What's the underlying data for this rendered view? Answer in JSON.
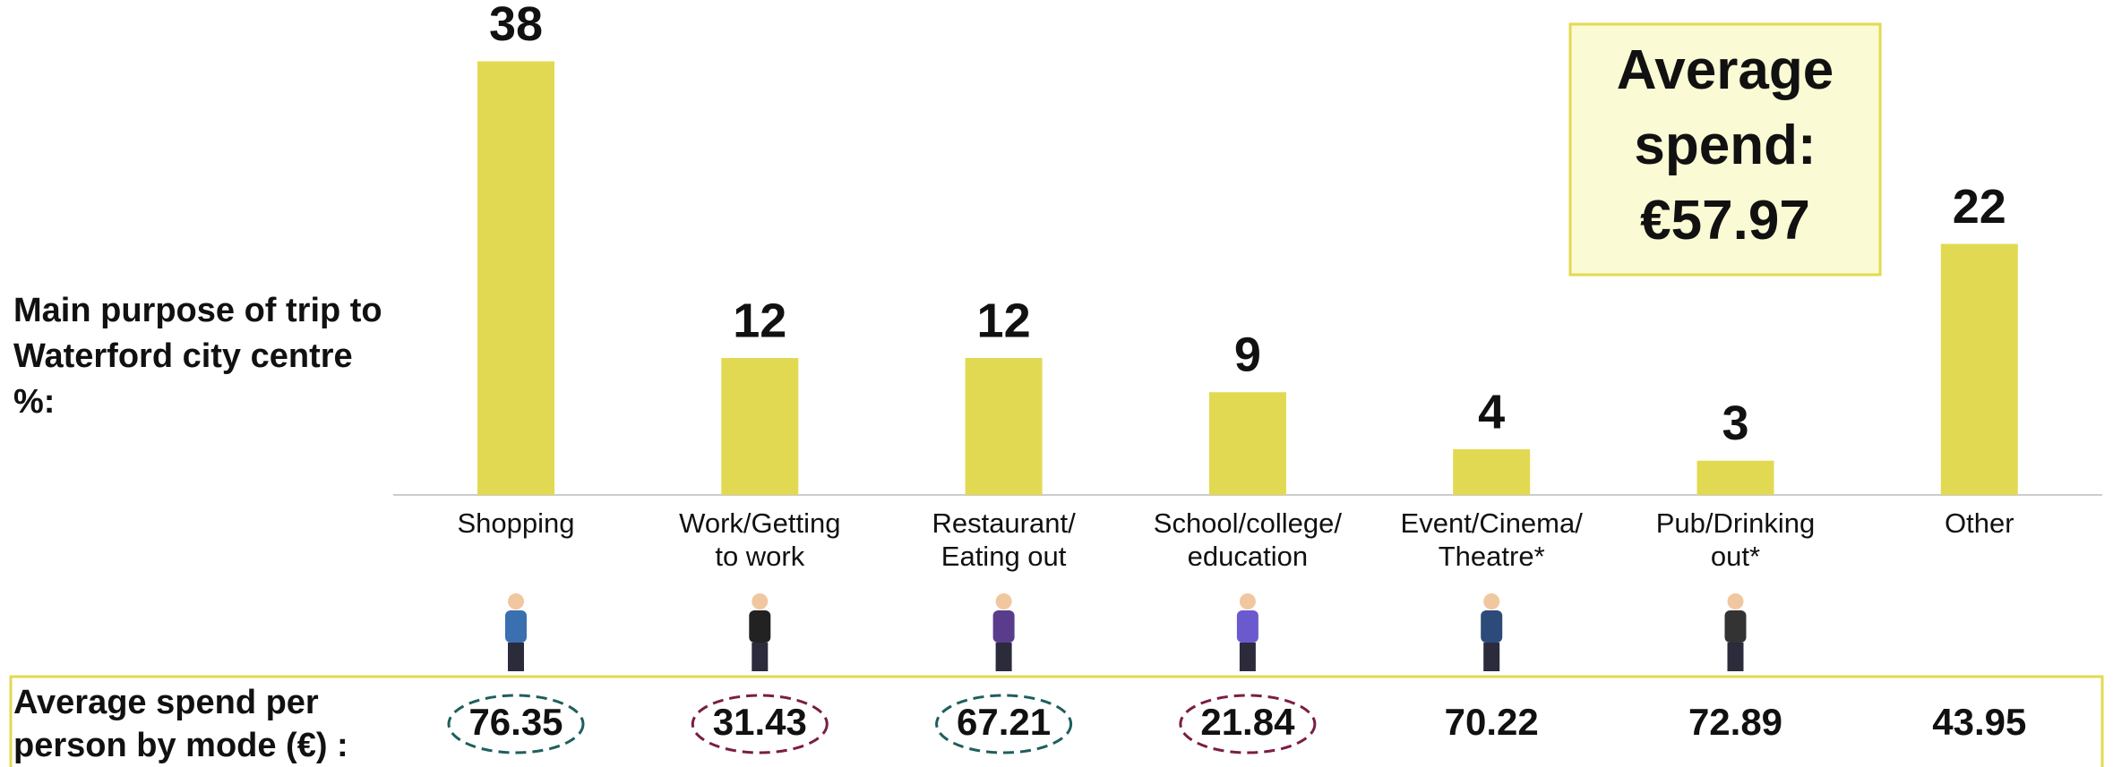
{
  "chart_data": {
    "type": "bar",
    "y_label": "Main purpose of trip to\nWaterford city centre\n%:",
    "categories": [
      "Shopping",
      "Work/Getting\nto work",
      "Restaurant/\nEating out",
      "School/college/\neducation",
      "Event/Cinema/\nTheatre*",
      "Pub/Drinking\nout*",
      "Other"
    ],
    "values": [
      38,
      12,
      12,
      9,
      4,
      3,
      22
    ],
    "color": "#e2d952",
    "ylim": [
      0,
      40
    ],
    "average_spend": "Average\nspend:\n€57.97",
    "spend": {
      "label": "Average spend per\nperson by mode (€) :",
      "values": [
        76.35,
        31.43,
        67.21,
        21.84,
        70.22,
        72.89,
        43.95
      ],
      "ring_colors": [
        "#1f5e5e",
        "#7a1d45",
        "#1f5e5e",
        "#7a1d45",
        null,
        null,
        null
      ]
    }
  }
}
